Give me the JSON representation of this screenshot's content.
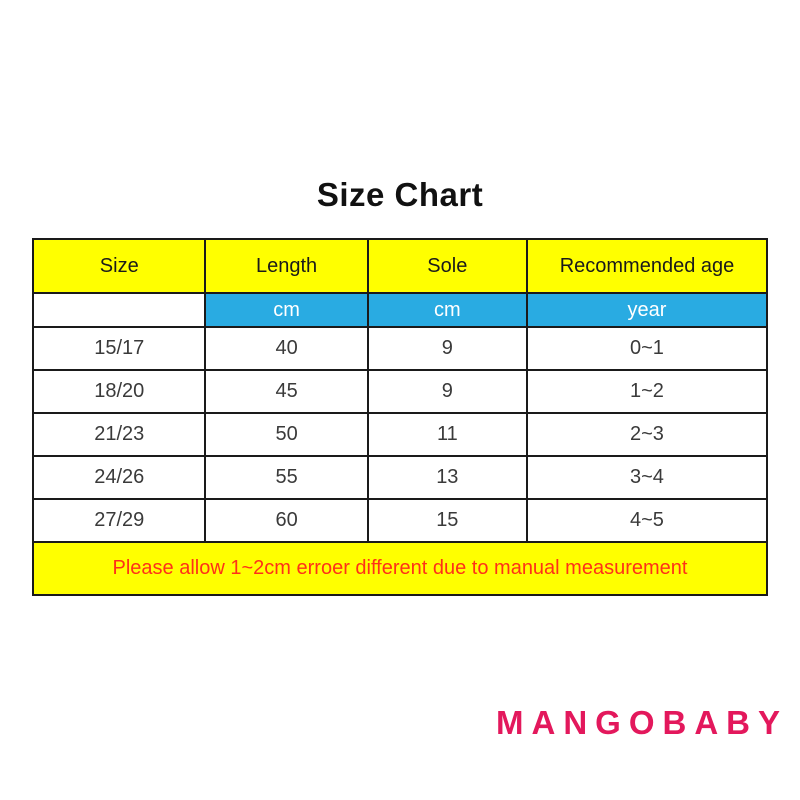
{
  "title": "Size Chart",
  "table": {
    "headers": [
      "Size",
      "Length",
      "Sole",
      "Recommended age"
    ],
    "units": [
      "",
      "cm",
      "cm",
      "year"
    ],
    "rows": [
      [
        "15/17",
        "40",
        "9",
        "0~1"
      ],
      [
        "18/20",
        "45",
        "9",
        "1~2"
      ],
      [
        "21/23",
        "50",
        "11",
        "2~3"
      ],
      [
        "24/26",
        "55",
        "13",
        "3~4"
      ],
      [
        "27/29",
        "60",
        "15",
        "4~5"
      ]
    ],
    "note": "Please allow 1~2cm erroer different due to manual measurement"
  },
  "brand": "MANGOBABY",
  "colors": {
    "header_bg": "#ffff00",
    "unit_bg": "#29abe2",
    "unit_text": "#ffffff",
    "note_bg": "#ffff00",
    "note_text": "#ff3118",
    "brand_text": "#e3185c",
    "border": "#1a1a1a",
    "page_bg": "#ffffff"
  },
  "chart_data": {
    "type": "table",
    "title": "Size Chart",
    "columns": [
      "Size",
      "Length",
      "Sole",
      "Recommended age"
    ],
    "column_units": [
      "",
      "cm",
      "cm",
      "year"
    ],
    "rows": [
      {
        "size": "15/17",
        "length_cm": 40,
        "sole_cm": 9,
        "recommended_age_year": "0~1"
      },
      {
        "size": "18/20",
        "length_cm": 45,
        "sole_cm": 9,
        "recommended_age_year": "1~2"
      },
      {
        "size": "21/23",
        "length_cm": 50,
        "sole_cm": 11,
        "recommended_age_year": "2~3"
      },
      {
        "size": "24/26",
        "length_cm": 55,
        "sole_cm": 13,
        "recommended_age_year": "3~4"
      },
      {
        "size": "27/29",
        "length_cm": 60,
        "sole_cm": 15,
        "recommended_age_year": "4~5"
      }
    ],
    "annotations": [
      "Please allow 1~2cm erroer different due to manual measurement"
    ],
    "brand": "MANGOBABY"
  }
}
